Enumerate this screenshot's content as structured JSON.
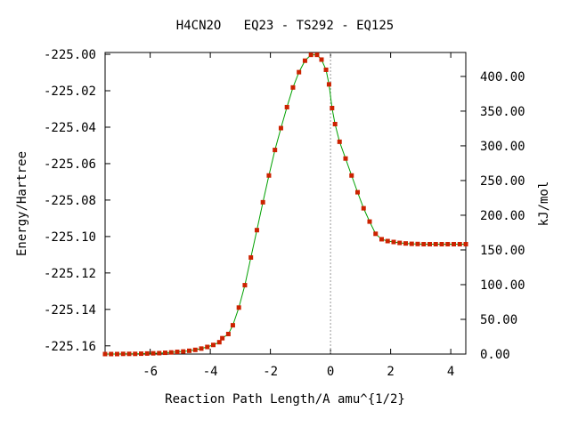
{
  "chart_data": {
    "type": "line",
    "title": "H4CN2O   EQ23 - TS292 - EQ125",
    "xlabel": "Reaction Path Length/A amu^{1/2}",
    "ylabel_left": "Energy/Hartree",
    "ylabel_right": "kJ/mol",
    "xlim": [
      -7.5,
      4.5
    ],
    "ylim_left": [
      -225.1645,
      -224.999
    ],
    "ylim_right": [
      0.0,
      434.5
    ],
    "x_ticks": [
      -6,
      -4,
      -2,
      0,
      2,
      4
    ],
    "x_tick_labels": [
      "-6",
      "-4",
      "-2",
      "0",
      "2",
      "4"
    ],
    "y_left_ticks": [
      -225.0,
      -225.02,
      -225.04,
      -225.06,
      -225.08,
      -225.1,
      -225.12,
      -225.14,
      -225.16
    ],
    "y_left_tick_labels": [
      "-225.00",
      "-225.02",
      "-225.04",
      "-225.06",
      "-225.08",
      "-225.10",
      "-225.12",
      "-225.14",
      "-225.16"
    ],
    "y_right_ticks": [
      0,
      50,
      100,
      150,
      200,
      250,
      300,
      350,
      400
    ],
    "y_right_tick_labels": [
      "0.00",
      "50.00",
      "100.00",
      "150.00",
      "200.00",
      "250.00",
      "300.00",
      "350.00",
      "400.00"
    ],
    "ts_marker_x": 0,
    "grid": false,
    "series": [
      {
        "line_color": "#00a000",
        "marker_color": "#cc2200",
        "x": [
          -7.5,
          -7.3,
          -7.1,
          -6.9,
          -6.7,
          -6.5,
          -6.3,
          -6.1,
          -5.9,
          -5.7,
          -5.5,
          -5.3,
          -5.1,
          -4.9,
          -4.7,
          -4.5,
          -4.3,
          -4.1,
          -3.9,
          -3.7,
          -3.6,
          -3.4,
          -3.25,
          -3.05,
          -2.85,
          -2.65,
          -2.45,
          -2.25,
          -2.05,
          -1.85,
          -1.65,
          -1.45,
          -1.25,
          -1.05,
          -0.85,
          -0.65,
          -0.45,
          -0.3,
          -0.15,
          -0.05,
          0.05,
          0.15,
          0.3,
          0.5,
          0.7,
          0.9,
          1.1,
          1.3,
          1.5,
          1.7,
          1.9,
          2.1,
          2.3,
          2.5,
          2.7,
          2.9,
          3.1,
          3.3,
          3.5,
          3.7,
          3.9,
          4.1,
          4.3,
          4.5
        ],
        "y": [
          -225.1645,
          -225.1645,
          -225.1645,
          -225.1644,
          -225.1644,
          -225.1644,
          -225.1643,
          -225.1642,
          -225.1641,
          -225.164,
          -225.1638,
          -225.1636,
          -225.1633,
          -225.1631,
          -225.1627,
          -225.1622,
          -225.1615,
          -225.1606,
          -225.1595,
          -225.158,
          -225.1558,
          -225.1535,
          -225.1487,
          -225.139,
          -225.1267,
          -225.1115,
          -225.0965,
          -225.0812,
          -225.0665,
          -225.0525,
          -225.0405,
          -225.029,
          -225.0182,
          -225.0098,
          -225.0035,
          -225.0003,
          -225.0003,
          -225.0029,
          -225.0085,
          -225.0165,
          -225.0295,
          -225.0383,
          -225.048,
          -225.0572,
          -225.0665,
          -225.0757,
          -225.0845,
          -225.0918,
          -225.0985,
          -225.1015,
          -225.1025,
          -225.103,
          -225.1035,
          -225.1038,
          -225.104,
          -225.1041,
          -225.1042,
          -225.1042,
          -225.1042,
          -225.1042,
          -225.1042,
          -225.1042,
          -225.1042,
          -225.1042
        ]
      }
    ]
  }
}
